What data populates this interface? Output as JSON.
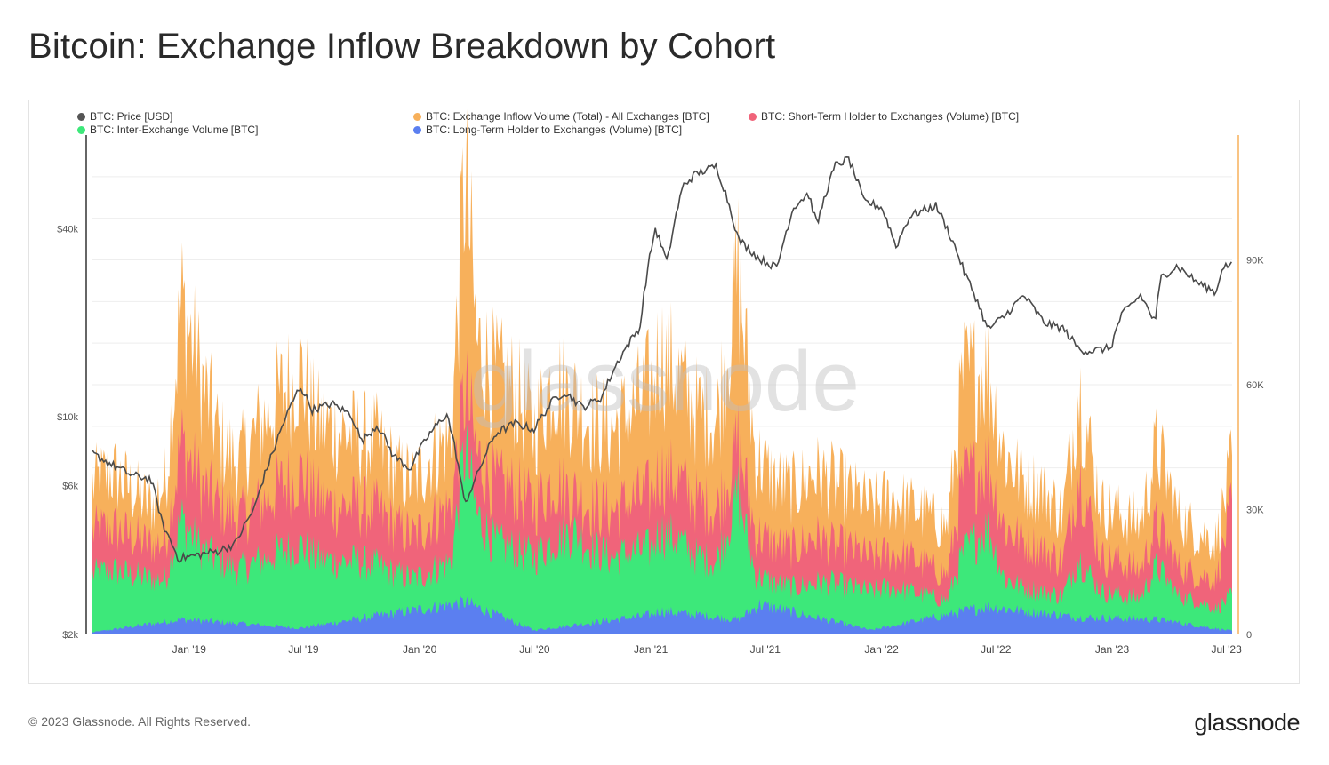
{
  "title": "Bitcoin: Exchange Inflow Breakdown by Cohort",
  "footer": {
    "copyright": "© 2023 Glassnode. All Rights Reserved.",
    "brand": "glassnode"
  },
  "watermark": "glassnode",
  "chart_data": {
    "type": "area",
    "title": "Bitcoin: Exchange Inflow Breakdown by Cohort",
    "legend": [
      {
        "name": "BTC: Price [USD]",
        "color": "#555555"
      },
      {
        "name": "BTC: Exchange Inflow Volume (Total) - All Exchanges [BTC]",
        "color": "#f7b05b"
      },
      {
        "name": "BTC: Short-Term Holder to Exchanges (Volume) [BTC]",
        "color": "#f0647a"
      },
      {
        "name": "BTC: Inter-Exchange Volume [BTC]",
        "color": "#3de87a"
      },
      {
        "name": "BTC: Long-Term Holder to Exchanges (Volume) [BTC]",
        "color": "#5b7ff0"
      }
    ],
    "legend_position": "top-left",
    "x_ticks": [
      "Jan '19",
      "Jul '19",
      "Jan '20",
      "Jul '20",
      "Jan '21",
      "Jul '21",
      "Jan '22",
      "Jul '22",
      "Jan '23",
      "Jul '23"
    ],
    "x_tick_dates": [
      "2019-01-01",
      "2019-07-01",
      "2020-01-01",
      "2020-07-01",
      "2021-01-01",
      "2021-07-01",
      "2022-01-01",
      "2022-07-01",
      "2023-01-01",
      "2023-07-01"
    ],
    "x_range": [
      "2018-08-01",
      "2023-07-10"
    ],
    "y_left": {
      "scale": "log",
      "ticks": [
        "$2k",
        "$6k",
        "$10k",
        "$40k"
      ],
      "tick_values": [
        2000,
        6000,
        10000,
        40000
      ],
      "range": [
        2000,
        80000
      ]
    },
    "y_right": {
      "scale": "linear",
      "ticks": [
        "0",
        "30K",
        "60K",
        "90K"
      ],
      "tick_values": [
        0,
        30000,
        60000,
        90000
      ],
      "range": [
        0,
        120000
      ]
    },
    "grid": true,
    "series": [
      {
        "name": "BTC: Price [USD]",
        "axis": "left",
        "x": [
          "2018-08-01",
          "2018-09-01",
          "2018-10-01",
          "2018-11-01",
          "2018-11-20",
          "2018-12-15",
          "2019-01-15",
          "2019-02-15",
          "2019-03-15",
          "2019-04-15",
          "2019-05-15",
          "2019-06-26",
          "2019-07-15",
          "2019-08-15",
          "2019-09-15",
          "2019-10-01",
          "2019-10-26",
          "2019-11-20",
          "2019-12-17",
          "2020-01-15",
          "2020-02-13",
          "2020-03-12",
          "2020-03-31",
          "2020-04-30",
          "2020-05-31",
          "2020-06-30",
          "2020-07-31",
          "2020-08-17",
          "2020-09-15",
          "2020-10-15",
          "2020-11-15",
          "2020-12-15",
          "2021-01-08",
          "2021-01-27",
          "2021-02-21",
          "2021-03-13",
          "2021-04-14",
          "2021-05-19",
          "2021-06-22",
          "2021-07-20",
          "2021-08-15",
          "2021-09-07",
          "2021-09-21",
          "2021-10-20",
          "2021-11-10",
          "2021-12-04",
          "2022-01-01",
          "2022-01-24",
          "2022-02-15",
          "2022-03-28",
          "2022-04-15",
          "2022-05-12",
          "2022-06-18",
          "2022-07-15",
          "2022-08-14",
          "2022-09-15",
          "2022-10-15",
          "2022-11-09",
          "2022-11-25",
          "2022-12-30",
          "2023-01-15",
          "2023-02-15",
          "2023-03-10",
          "2023-03-20",
          "2023-04-14",
          "2023-05-15",
          "2023-06-15",
          "2023-06-25",
          "2023-07-10"
        ],
        "y": [
          7600,
          7000,
          6500,
          6300,
          4500,
          3500,
          3600,
          3700,
          3900,
          5100,
          7800,
          12500,
          10500,
          11000,
          10100,
          8300,
          9400,
          7500,
          6800,
          8700,
          10200,
          5200,
          6400,
          8800,
          9500,
          9100,
          11300,
          12000,
          10700,
          11500,
          15700,
          19400,
          40000,
          31000,
          55000,
          60000,
          63500,
          37000,
          32000,
          30000,
          47000,
          52000,
          41000,
          64000,
          67000,
          49000,
          47000,
          35000,
          44000,
          47500,
          40000,
          29000,
          19000,
          21000,
          24500,
          20000,
          19200,
          16500,
          16200,
          16600,
          21000,
          24500,
          20000,
          28000,
          30400,
          27000,
          25000,
          30500,
          30500
        ]
      },
      {
        "name": "BTC: Exchange Inflow Volume (Total) - All Exchanges [BTC]",
        "axis": "right",
        "x": [
          "2018-08-01",
          "2018-09-01",
          "2018-10-01",
          "2018-11-01",
          "2018-11-25",
          "2018-12-20",
          "2019-01-20",
          "2019-02-20",
          "2019-03-20",
          "2019-04-20",
          "2019-05-20",
          "2019-06-26",
          "2019-07-20",
          "2019-08-20",
          "2019-09-25",
          "2019-10-26",
          "2019-11-25",
          "2019-12-25",
          "2020-01-20",
          "2020-02-20",
          "2020-03-13",
          "2020-03-31",
          "2020-04-30",
          "2020-05-31",
          "2020-06-30",
          "2020-07-31",
          "2020-08-31",
          "2020-09-30",
          "2020-10-31",
          "2020-11-30",
          "2020-12-31",
          "2021-01-15",
          "2021-02-15",
          "2021-03-15",
          "2021-04-15",
          "2021-05-19",
          "2021-06-15",
          "2021-07-15",
          "2021-08-15",
          "2021-09-15",
          "2021-10-15",
          "2021-11-15",
          "2021-12-15",
          "2022-01-15",
          "2022-02-15",
          "2022-03-15",
          "2022-04-15",
          "2022-05-10",
          "2022-06-18",
          "2022-07-15",
          "2022-08-15",
          "2022-09-15",
          "2022-10-15",
          "2022-11-09",
          "2022-12-15",
          "2023-01-15",
          "2023-02-15",
          "2023-03-13",
          "2023-04-15",
          "2023-05-15",
          "2023-06-15",
          "2023-07-10"
        ],
        "y": [
          35000,
          38000,
          34000,
          30000,
          36000,
          78000,
          60000,
          45000,
          40000,
          48000,
          55000,
          62000,
          50000,
          48000,
          46000,
          45000,
          38000,
          36000,
          42000,
          46000,
          110000,
          68000,
          60000,
          57000,
          48000,
          60000,
          55000,
          50000,
          48000,
          52000,
          58000,
          66000,
          60000,
          52000,
          50000,
          85000,
          42000,
          36000,
          34000,
          38000,
          36000,
          33000,
          30000,
          32000,
          30000,
          28000,
          25000,
          60000,
          62000,
          42000,
          36000,
          34000,
          28000,
          58000,
          30000,
          28000,
          26000,
          44000,
          28000,
          24000,
          22000,
          40000
        ]
      },
      {
        "name": "BTC: Short-Term Holder to Exchanges (Volume) [BTC]",
        "axis": "right",
        "x": [
          "2018-08-01",
          "2018-09-01",
          "2018-10-01",
          "2018-11-01",
          "2018-11-25",
          "2018-12-20",
          "2019-01-20",
          "2019-02-20",
          "2019-03-20",
          "2019-04-20",
          "2019-05-20",
          "2019-06-26",
          "2019-07-20",
          "2019-08-20",
          "2019-09-25",
          "2019-10-26",
          "2019-11-25",
          "2019-12-25",
          "2020-01-20",
          "2020-02-20",
          "2020-03-13",
          "2020-03-31",
          "2020-04-30",
          "2020-05-31",
          "2020-06-30",
          "2020-07-31",
          "2020-08-31",
          "2020-09-30",
          "2020-10-31",
          "2020-11-30",
          "2020-12-31",
          "2021-01-15",
          "2021-02-15",
          "2021-03-15",
          "2021-04-15",
          "2021-05-19",
          "2021-06-15",
          "2021-07-15",
          "2021-08-15",
          "2021-09-15",
          "2021-10-15",
          "2021-11-15",
          "2021-12-15",
          "2022-01-15",
          "2022-02-15",
          "2022-03-15",
          "2022-04-15",
          "2022-05-10",
          "2022-06-18",
          "2022-07-15",
          "2022-08-15",
          "2022-09-15",
          "2022-10-15",
          "2022-11-09",
          "2022-12-15",
          "2023-01-15",
          "2023-02-15",
          "2023-03-13",
          "2023-04-15",
          "2023-05-15",
          "2023-06-15",
          "2023-07-10"
        ],
        "y": [
          24000,
          25000,
          23000,
          21000,
          22000,
          45000,
          35000,
          30000,
          27000,
          30000,
          34000,
          38000,
          32000,
          30000,
          30000,
          29000,
          25000,
          23000,
          27000,
          30000,
          58000,
          42000,
          35000,
          34000,
          30000,
          36000,
          33000,
          30000,
          29000,
          31000,
          33000,
          38000,
          36000,
          31000,
          29000,
          45000,
          24000,
          21000,
          20000,
          23000,
          21000,
          20000,
          18000,
          19000,
          18000,
          16000,
          14000,
          36000,
          40000,
          25000,
          22000,
          20000,
          17000,
          38000,
          18000,
          17000,
          15000,
          26000,
          16000,
          14000,
          13000,
          30000
        ]
      },
      {
        "name": "BTC: Inter-Exchange Volume [BTC]",
        "axis": "right",
        "x": [
          "2018-08-01",
          "2018-09-01",
          "2018-10-01",
          "2018-11-01",
          "2018-11-25",
          "2018-12-20",
          "2019-01-20",
          "2019-02-20",
          "2019-03-20",
          "2019-04-20",
          "2019-05-20",
          "2019-06-26",
          "2019-07-20",
          "2019-08-20",
          "2019-09-25",
          "2019-10-26",
          "2019-11-25",
          "2019-12-25",
          "2020-01-20",
          "2020-02-20",
          "2020-03-13",
          "2020-03-31",
          "2020-04-30",
          "2020-05-31",
          "2020-06-30",
          "2020-07-31",
          "2020-08-31",
          "2020-09-30",
          "2020-10-31",
          "2020-11-30",
          "2020-12-31",
          "2021-01-15",
          "2021-02-15",
          "2021-03-15",
          "2021-04-15",
          "2021-05-19",
          "2021-06-15",
          "2021-07-15",
          "2021-08-15",
          "2021-09-15",
          "2021-10-15",
          "2021-11-15",
          "2021-12-15",
          "2022-01-15",
          "2022-02-15",
          "2022-03-15",
          "2022-04-15",
          "2022-05-10",
          "2022-06-18",
          "2022-07-15",
          "2022-08-15",
          "2022-09-15",
          "2022-10-15",
          "2022-11-09",
          "2022-12-15",
          "2023-01-15",
          "2023-02-15",
          "2023-03-13",
          "2023-04-15",
          "2023-05-15",
          "2023-06-15",
          "2023-07-10"
        ],
        "y": [
          14000,
          15000,
          14000,
          13000,
          13000,
          27000,
          20000,
          17000,
          15000,
          17000,
          19000,
          21000,
          18000,
          17000,
          17000,
          16000,
          14000,
          13000,
          15000,
          17000,
          44000,
          28000,
          21000,
          20000,
          18000,
          22000,
          24000,
          20000,
          18000,
          19000,
          20000,
          24000,
          22000,
          18000,
          17000,
          33000,
          14000,
          12000,
          11000,
          12000,
          12000,
          11000,
          10000,
          11000,
          10000,
          9000,
          8000,
          19000,
          25000,
          13000,
          11000,
          10000,
          9000,
          18000,
          10000,
          9000,
          8500,
          16000,
          9000,
          8000,
          6000,
          9000
        ]
      },
      {
        "name": "BTC: Long-Term Holder to Exchanges (Volume) [BTC]",
        "axis": "right",
        "x": [
          "2018-08-01",
          "2018-12-20",
          "2019-06-26",
          "2020-03-13",
          "2020-06-30",
          "2020-12-31",
          "2021-01-15",
          "2021-05-19",
          "2021-06-22",
          "2021-12-15",
          "2022-06-18",
          "2022-11-09",
          "2023-03-13",
          "2023-07-10"
        ],
        "y": [
          500,
          3500,
          1500,
          7500,
          1000,
          4500,
          5500,
          3500,
          7000,
          1000,
          6500,
          4000,
          3500,
          800
        ]
      }
    ]
  }
}
